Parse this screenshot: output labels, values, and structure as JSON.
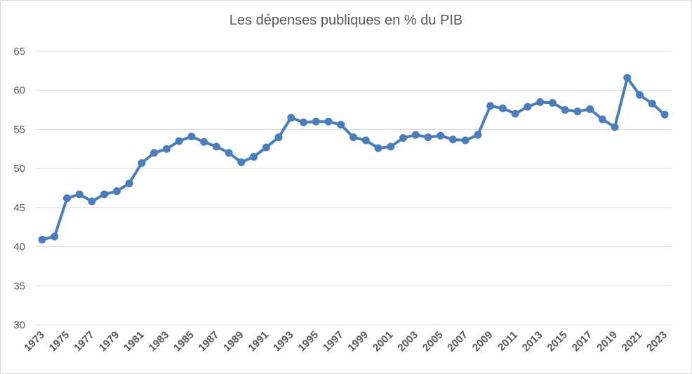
{
  "chart_data": {
    "type": "line",
    "title": "Les dépenses publiques  en % du PIB",
    "xlabel": "",
    "ylabel": "",
    "ylim": [
      30,
      65
    ],
    "yticks": [
      30,
      35,
      40,
      45,
      50,
      55,
      60,
      65
    ],
    "x_tick_labels": [
      "1973",
      "1975",
      "1977",
      "1979",
      "1981",
      "1983",
      "1985",
      "1987",
      "1989",
      "1991",
      "1993",
      "1995",
      "1997",
      "1999",
      "2001",
      "2003",
      "2005",
      "2007",
      "2009",
      "2011",
      "2013",
      "2015",
      "2017",
      "2019",
      "2021",
      "2023"
    ],
    "grid": true,
    "legend": "none",
    "color": "#4a7ebb",
    "x": [
      1973,
      1974,
      1975,
      1976,
      1977,
      1978,
      1979,
      1980,
      1981,
      1982,
      1983,
      1984,
      1985,
      1986,
      1987,
      1988,
      1989,
      1990,
      1991,
      1992,
      1993,
      1994,
      1995,
      1996,
      1997,
      1998,
      1999,
      2000,
      2001,
      2002,
      2003,
      2004,
      2005,
      2006,
      2007,
      2008,
      2009,
      2010,
      2011,
      2012,
      2013,
      2014,
      2015,
      2016,
      2017,
      2018,
      2019,
      2020,
      2021,
      2022,
      2023
    ],
    "values": [
      40.9,
      41.3,
      46.2,
      46.7,
      45.8,
      46.7,
      47.1,
      48.1,
      50.7,
      52.0,
      52.5,
      53.5,
      54.1,
      53.4,
      52.8,
      52.0,
      50.8,
      51.5,
      52.7,
      54.0,
      56.5,
      55.9,
      56.0,
      56.0,
      55.6,
      54.0,
      53.6,
      52.6,
      52.8,
      53.9,
      54.3,
      54.0,
      54.2,
      53.7,
      53.6,
      54.3,
      58.0,
      57.7,
      57.0,
      57.9,
      58.5,
      58.4,
      57.5,
      57.3,
      57.6,
      56.3,
      55.3,
      61.6,
      59.4,
      58.3,
      56.9
    ]
  }
}
